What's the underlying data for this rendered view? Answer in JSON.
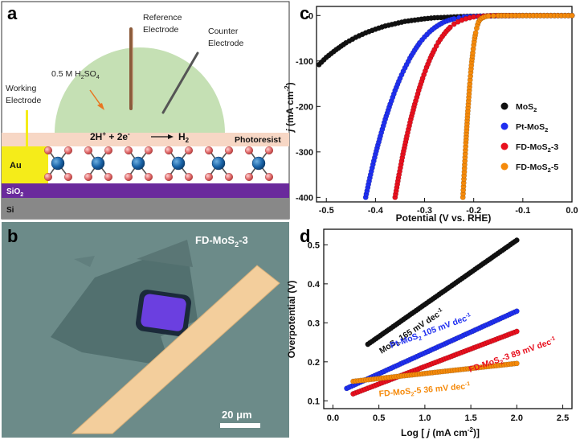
{
  "panels": {
    "a": {
      "label": "a",
      "reference_electrode": [
        "Reference",
        "Electrode"
      ],
      "counter_electrode": [
        "Counter",
        "Electrode"
      ],
      "working_electrode": [
        "Working",
        "Electrode"
      ],
      "electrolyte": "0.5 M H2SO4",
      "reaction": "2H+ + 2e- → H2",
      "photoresist": "Photoresist",
      "au": "Au",
      "sio2": "SiO2",
      "si": "Si"
    },
    "b": {
      "label": "b",
      "sample": "FD-MoS2-3",
      "scale_bar": "20 μm"
    },
    "c": {
      "label": "c"
    },
    "d": {
      "label": "d"
    }
  },
  "colors": {
    "MoS2": "#111111",
    "Pt-MoS2": "#1f2ff0",
    "FD-MoS2-3": "#e8101e",
    "FD-MoS2-5": "#f58a0b"
  },
  "chart_data": [
    {
      "type": "scatter",
      "panel": "c",
      "xlabel": "Potential (V vs. RHE)",
      "ylabel": "j (mA cm-2)",
      "xlim": [
        -0.52,
        0.0
      ],
      "ylim": [
        -410,
        20
      ],
      "xticks": [
        "-0.5",
        "-0.4",
        "-0.3",
        "-0.2",
        "-0.1",
        "0.0"
      ],
      "yticks": [
        "0",
        "-100",
        "-200",
        "-300",
        "-400"
      ],
      "legend_position": "lower-right",
      "series": [
        {
          "name": "MoS2",
          "x": [
            -0.515,
            -0.5,
            -0.48,
            -0.46,
            -0.44,
            -0.42,
            -0.4,
            -0.38,
            -0.36,
            -0.34,
            -0.32,
            -0.3,
            -0.28,
            -0.26,
            -0.24,
            -0.22,
            -0.2,
            -0.18,
            -0.15,
            -0.1,
            -0.05,
            0.0
          ],
          "y": [
            -108,
            -92,
            -75,
            -60,
            -48,
            -38,
            -30,
            -23,
            -18,
            -13,
            -10,
            -7,
            -5,
            -4,
            -3,
            -2,
            -1.5,
            -1,
            -0.5,
            0,
            0,
            0
          ]
        },
        {
          "name": "Pt-MoS2",
          "x": [
            -0.42,
            -0.41,
            -0.4,
            -0.39,
            -0.38,
            -0.37,
            -0.36,
            -0.35,
            -0.34,
            -0.33,
            -0.32,
            -0.31,
            -0.3,
            -0.29,
            -0.28,
            -0.27,
            -0.26,
            -0.25,
            -0.24,
            -0.23,
            -0.22,
            -0.2,
            -0.18,
            -0.15,
            -0.1,
            -0.05,
            0.0
          ],
          "y": [
            -400,
            -350,
            -305,
            -265,
            -228,
            -195,
            -165,
            -138,
            -115,
            -94,
            -76,
            -60,
            -47,
            -36,
            -27,
            -20,
            -14,
            -10,
            -7,
            -5,
            -3,
            -2,
            -1,
            0,
            0,
            0,
            0
          ]
        },
        {
          "name": "FD-MoS2-3",
          "x": [
            -0.36,
            -0.352,
            -0.344,
            -0.336,
            -0.328,
            -0.32,
            -0.312,
            -0.304,
            -0.296,
            -0.288,
            -0.28,
            -0.272,
            -0.264,
            -0.256,
            -0.248,
            -0.24,
            -0.232,
            -0.224,
            -0.216,
            -0.208,
            -0.2,
            -0.19,
            -0.18,
            -0.16,
            -0.14,
            -0.1,
            -0.05,
            0.0
          ],
          "y": [
            -400,
            -350,
            -305,
            -265,
            -228,
            -195,
            -165,
            -138,
            -114,
            -93,
            -75,
            -59,
            -46,
            -35,
            -26,
            -19,
            -14,
            -10,
            -7,
            -5,
            -3,
            -2,
            -1,
            0,
            0,
            0,
            0,
            0
          ]
        },
        {
          "name": "FD-MoS2-5",
          "x": [
            -0.222,
            -0.22,
            -0.218,
            -0.216,
            -0.214,
            -0.212,
            -0.21,
            -0.208,
            -0.206,
            -0.204,
            -0.202,
            -0.2,
            -0.198,
            -0.196,
            -0.194,
            -0.192,
            -0.19,
            -0.187,
            -0.184,
            -0.18,
            -0.175,
            -0.17,
            -0.16,
            -0.15,
            -0.13,
            -0.1,
            -0.05,
            0.0
          ],
          "y": [
            -400,
            -360,
            -320,
            -280,
            -245,
            -210,
            -180,
            -150,
            -125,
            -102,
            -82,
            -65,
            -50,
            -38,
            -28,
            -20,
            -14,
            -9,
            -6,
            -4,
            -2,
            -1,
            -0.5,
            0,
            0,
            0,
            0,
            0
          ]
        }
      ]
    },
    {
      "type": "scatter",
      "panel": "d",
      "xlabel": "Log [ j (mA cm-2)]",
      "ylabel": "Overpotential (V)",
      "xlim": [
        -0.1,
        2.6
      ],
      "ylim": [
        0.08,
        0.54
      ],
      "xticks": [
        "0.0",
        "0.5",
        "1.0",
        "1.5",
        "2.0",
        "2.5"
      ],
      "yticks": [
        "0.1",
        "0.2",
        "0.3",
        "0.4",
        "0.5"
      ],
      "series": [
        {
          "name": "MoS2",
          "x_range": [
            0.38,
            2.0
          ],
          "y_range": [
            0.245,
            0.512
          ],
          "annotation": "MoS2 165 mV dec-1"
        },
        {
          "name": "Pt-MoS2",
          "x_range": [
            0.15,
            2.0
          ],
          "y_range": [
            0.132,
            0.33
          ],
          "annotation": "Pt-MoS2 105 mV dec-1"
        },
        {
          "name": "FD-MoS2-3",
          "x_range": [
            0.22,
            2.0
          ],
          "y_range": [
            0.118,
            0.278
          ],
          "annotation": "FD-MoS2-3 89 mV dec-1"
        },
        {
          "name": "FD-MoS2-5",
          "x_range": [
            0.22,
            2.0
          ],
          "y_range": [
            0.15,
            0.196
          ],
          "annotation": "FD-MoS2-5 36 mV dec-1"
        }
      ]
    }
  ]
}
